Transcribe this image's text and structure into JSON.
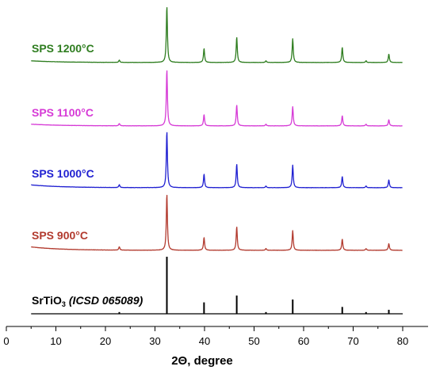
{
  "chart_data": {
    "type": "line",
    "xlabel": "2Θ, degree",
    "ylabel": "",
    "xlim": [
      0,
      82
    ],
    "x_ticks": [
      0,
      10,
      20,
      30,
      40,
      50,
      60,
      70,
      80
    ],
    "grid": false,
    "y_ticks_shown": false,
    "peak_positions": [
      22.8,
      32.4,
      39.9,
      46.5,
      52.4,
      57.8,
      67.8,
      72.6,
      77.2
    ],
    "series": [
      {
        "name": "SPS 1200°C",
        "color": "#2e7d1f",
        "baseline": 0.03,
        "peaks": [
          {
            "x": 22.8,
            "y": 0.04
          },
          {
            "x": 32.4,
            "y": 1.0
          },
          {
            "x": 39.9,
            "y": 0.25
          },
          {
            "x": 46.5,
            "y": 0.45
          },
          {
            "x": 52.4,
            "y": 0.03
          },
          {
            "x": 57.8,
            "y": 0.42
          },
          {
            "x": 67.8,
            "y": 0.27
          },
          {
            "x": 72.6,
            "y": 0.03
          },
          {
            "x": 77.2,
            "y": 0.15
          }
        ]
      },
      {
        "name": "SPS 1100°C",
        "color": "#d63ad6",
        "baseline": 0.03,
        "peaks": [
          {
            "x": 22.8,
            "y": 0.04
          },
          {
            "x": 32.4,
            "y": 1.0
          },
          {
            "x": 39.9,
            "y": 0.2
          },
          {
            "x": 46.5,
            "y": 0.37
          },
          {
            "x": 52.4,
            "y": 0.03
          },
          {
            "x": 57.8,
            "y": 0.34
          },
          {
            "x": 67.8,
            "y": 0.18
          },
          {
            "x": 72.6,
            "y": 0.03
          },
          {
            "x": 77.2,
            "y": 0.11
          }
        ]
      },
      {
        "name": "SPS 1000°C",
        "color": "#1f1fd1",
        "baseline": 0.05,
        "peaks": [
          {
            "x": 22.8,
            "y": 0.05
          },
          {
            "x": 32.4,
            "y": 1.0
          },
          {
            "x": 39.9,
            "y": 0.24
          },
          {
            "x": 46.5,
            "y": 0.42
          },
          {
            "x": 52.4,
            "y": 0.03
          },
          {
            "x": 57.8,
            "y": 0.4
          },
          {
            "x": 67.8,
            "y": 0.2
          },
          {
            "x": 72.6,
            "y": 0.03
          },
          {
            "x": 77.2,
            "y": 0.14
          }
        ]
      },
      {
        "name": "SPS 900°C",
        "color": "#b23a2e",
        "baseline": 0.06,
        "peaks": [
          {
            "x": 22.8,
            "y": 0.06
          },
          {
            "x": 32.4,
            "y": 1.0
          },
          {
            "x": 39.9,
            "y": 0.23
          },
          {
            "x": 46.5,
            "y": 0.42
          },
          {
            "x": 52.4,
            "y": 0.03
          },
          {
            "x": 57.8,
            "y": 0.35
          },
          {
            "x": 67.8,
            "y": 0.2
          },
          {
            "x": 72.6,
            "y": 0.03
          },
          {
            "x": 77.2,
            "y": 0.12
          }
        ]
      },
      {
        "name": "SrTiO3 (ICSD 065089)",
        "color": "#000000",
        "baseline": 0.0,
        "stick": true,
        "peaks": [
          {
            "x": 22.8,
            "y": 0.03
          },
          {
            "x": 32.4,
            "y": 1.0
          },
          {
            "x": 39.9,
            "y": 0.2
          },
          {
            "x": 46.5,
            "y": 0.32
          },
          {
            "x": 52.4,
            "y": 0.03
          },
          {
            "x": 57.8,
            "y": 0.25
          },
          {
            "x": 67.8,
            "y": 0.12
          },
          {
            "x": 72.6,
            "y": 0.03
          },
          {
            "x": 77.2,
            "y": 0.07
          }
        ]
      }
    ]
  },
  "labels": {
    "s1200": "SPS 1200°C",
    "s1100": "SPS 1100°C",
    "s1000": "SPS 1000°C",
    "s900": "SPS 900°C",
    "ref_formula_main": "SrTiO",
    "ref_formula_sub": "3",
    "ref_source": "(ICSD 065089)"
  }
}
